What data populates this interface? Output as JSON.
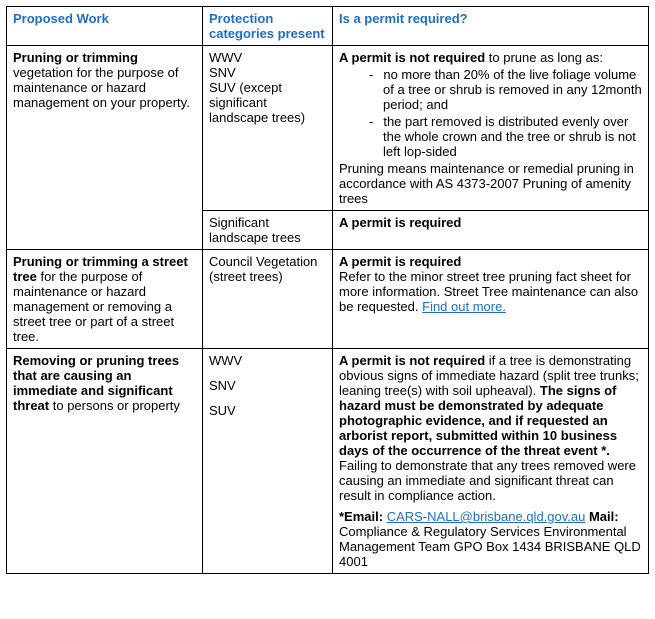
{
  "headers": {
    "col1": "Proposed Work",
    "col2": "Protection categories present",
    "col3": "Is a permit required?"
  },
  "row1": {
    "work_bold": "Pruning or trimming",
    "work_rest": " vegetation for the purpose of maintenance or hazard management on your property.",
    "cat_lines": {
      "a": "WWV",
      "b": "SNV",
      "c": "SUV (except significant landscape trees)"
    },
    "permit_bold": "A permit is not required",
    "permit_after": " to prune as long as:",
    "bullet1": "no more than 20% of the live foliage volume of a tree or shrub is removed in any 12month period; and",
    "bullet2": "the part removed is distributed evenly over the whole crown and the tree or shrub is not left lop-sided",
    "pruning_line1": "Pruning means maintenance or remedial pruning in accordance with AS 4373-2007 Pruning of amenity trees"
  },
  "row1b": {
    "cat": "Significant landscape trees",
    "permit": "A permit is required"
  },
  "row2": {
    "work_bold": "Pruning or trimming a street tree",
    "work_rest": " for the purpose of maintenance or hazard management or removing a street tree or part of a street tree.",
    "cat_lines": {
      "a": "Council Vegetation (street trees)"
    },
    "permit_bold": "A permit is required",
    "permit_text": "Refer to the minor street tree pruning fact sheet for more information. Street Tree maintenance can also be requested. ",
    "link": "Find out more."
  },
  "row3": {
    "work_bold": "Removing or pruning trees that are causing an immediate and significant threat",
    "work_rest": " to persons or property",
    "cat_lines": {
      "a": "WWV",
      "b": "SNV",
      "c": "SUV"
    },
    "permit_bold1": "A permit is not required",
    "permit_text1": " if a tree is demonstrating obvious signs of immediate hazard (split tree trunks; leaning tree(s) with soil upheaval).  ",
    "permit_bold2": "The signs of hazard must be demonstrated by adequate photographic evidence, and if requested an arborist report, submitted within 10 business days of the occurrence of the threat event *.",
    "permit_text2": "Failing to demonstrate that any trees removed were causing an immediate and significant threat can result in compliance action.",
    "foot_bold1": "*Email: ",
    "foot_link": "CARS-NALL@brisbane.qld.gov.au",
    "foot_bold2": "   Mail:",
    "foot_text": " Compliance & Regulatory Services   Environmental Management Team GPO Box 1434 BRISBANE QLD 4001"
  }
}
